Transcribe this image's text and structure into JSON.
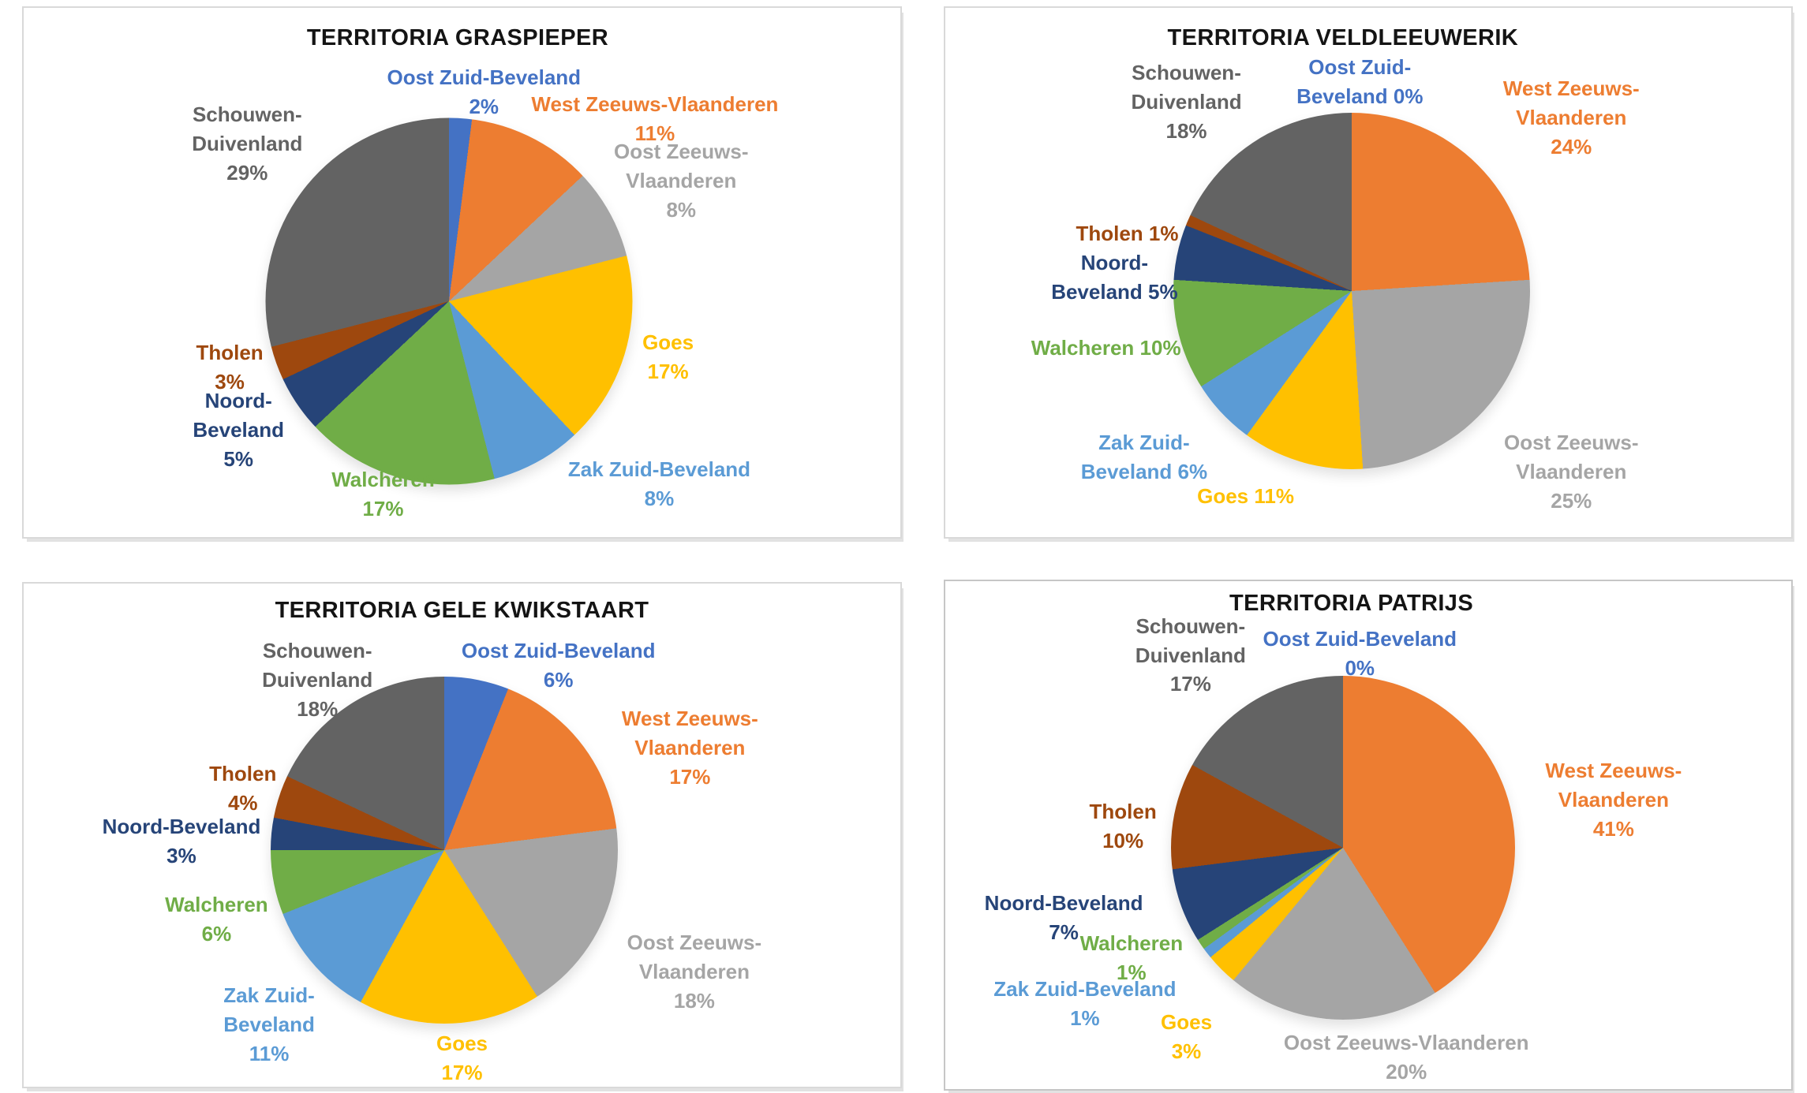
{
  "page": {
    "background_color": "#ffffff",
    "panel_border_color": "#d9d9d9"
  },
  "palette": {
    "Oost Zuid-Beveland": "#4472C4",
    "West Zeeuws-Vlaanderen": "#ED7D31",
    "Oost Zeeuws-Vlaanderen": "#A5A5A5",
    "Goes": "#FFC000",
    "Zak Zuid-Beveland": "#5B9BD5",
    "Walcheren": "#70AD47",
    "Noord-Beveland": "#264478",
    "Tholen": "#9E480E",
    "Schouwen-Duivenland": "#636363"
  },
  "chart_data": [
    {
      "type": "pie",
      "title": "TERRITORIA GRASPIEPER",
      "unit": "%",
      "start_angle_deg": 0,
      "direction": "clockwise",
      "categories": [
        "Oost Zuid-Beveland",
        "West Zeeuws-Vlaanderen",
        "Oost Zeeuws-Vlaanderen",
        "Goes",
        "Zak Zuid-Beveland",
        "Walcheren",
        "Noord-Beveland",
        "Tholen",
        "Schouwen-Duivenland"
      ],
      "values": [
        2,
        11,
        8,
        17,
        8,
        17,
        5,
        3,
        29
      ],
      "labels": [
        {
          "category": "Oost Zuid-Beveland",
          "lines": [
            "Oost Zuid-Beveland",
            "2%"
          ],
          "x": 52.5,
          "y": 10.5
        },
        {
          "category": "West Zeeuws-Vlaanderen",
          "lines": [
            "West Zeeuws-Vlaanderen",
            "11%"
          ],
          "x": 72,
          "y": 15.5
        },
        {
          "category": "Oost Zeeuws-Vlaanderen",
          "lines": [
            "Oost Zeeuws-",
            "Vlaanderen",
            "8%"
          ],
          "x": 75,
          "y": 24.5
        },
        {
          "category": "Goes",
          "lines": [
            "Goes",
            "17%"
          ],
          "x": 73.5,
          "y": 60.5
        },
        {
          "category": "Zak Zuid-Beveland",
          "lines": [
            "Zak Zuid-Beveland",
            "8%"
          ],
          "x": 72.5,
          "y": 84.5
        },
        {
          "category": "Walcheren",
          "lines": [
            "Walcheren",
            "17%"
          ],
          "x": 41,
          "y": 86.5
        },
        {
          "category": "Noord-Beveland",
          "lines": [
            "Noord-",
            "Beveland",
            "5%"
          ],
          "x": 24.5,
          "y": 71.5
        },
        {
          "category": "Tholen",
          "lines": [
            "Tholen",
            "3%"
          ],
          "x": 23.5,
          "y": 62.5
        },
        {
          "category": "Schouwen-Duivenland",
          "lines": [
            "Schouwen-",
            "Duivenland",
            "29%"
          ],
          "x": 25.5,
          "y": 17.5
        }
      ]
    },
    {
      "type": "pie",
      "title": "TERRITORIA VELDLEEUWERIK",
      "unit": "%",
      "start_angle_deg": 0,
      "direction": "clockwise",
      "categories": [
        "Oost Zuid-Beveland",
        "West Zeeuws-Vlaanderen",
        "Oost Zeeuws-Vlaanderen",
        "Goes",
        "Zak Zuid-Beveland",
        "Walcheren",
        "Noord-Beveland",
        "Tholen",
        "Schouwen-Duivenland"
      ],
      "values": [
        0,
        24,
        25,
        11,
        6,
        10,
        5,
        1,
        18
      ],
      "labels": [
        {
          "category": "Oost Zuid-Beveland",
          "lines": [
            "Oost Zuid-",
            "Beveland 0%"
          ],
          "x": 49,
          "y": 8.5
        },
        {
          "category": "West Zeeuws-Vlaanderen",
          "lines": [
            "West Zeeuws-",
            "Vlaanderen",
            "24%"
          ],
          "x": 74,
          "y": 12.5
        },
        {
          "category": "Oost Zeeuws-Vlaanderen",
          "lines": [
            "Oost Zeeuws-",
            "Vlaanderen",
            "25%"
          ],
          "x": 74,
          "y": 79.5
        },
        {
          "category": "Goes",
          "lines": [
            "Goes 11%"
          ],
          "x": 35.5,
          "y": 89.5
        },
        {
          "category": "Zak Zuid-Beveland",
          "lines": [
            "Zak Zuid-",
            "Beveland 6%"
          ],
          "x": 23.5,
          "y": 79.5
        },
        {
          "category": "Walcheren",
          "lines": [
            "Walcheren 10%"
          ],
          "x": 19,
          "y": 61.5
        },
        {
          "category": "Noord-Beveland",
          "lines": [
            "Noord-",
            "Beveland 5%"
          ],
          "x": 20,
          "y": 45.5
        },
        {
          "category": "Tholen",
          "lines": [
            "Tholen 1%"
          ],
          "x": 21.5,
          "y": 40
        },
        {
          "category": "Schouwen-Duivenland",
          "lines": [
            "Schouwen-",
            "Duivenland",
            "18%"
          ],
          "x": 28.5,
          "y": 9.5
        }
      ]
    },
    {
      "type": "pie",
      "title": "TERRITORIA GELE KWIKSTAART",
      "unit": "%",
      "start_angle_deg": 0,
      "direction": "clockwise",
      "categories": [
        "Oost Zuid-Beveland",
        "West Zeeuws-Vlaanderen",
        "Oost Zeeuws-Vlaanderen",
        "Goes",
        "Zak Zuid-Beveland",
        "Walcheren",
        "Noord-Beveland",
        "Tholen",
        "Schouwen-Duivenland"
      ],
      "values": [
        6,
        17,
        18,
        17,
        11,
        6,
        3,
        4,
        18
      ],
      "labels": [
        {
          "category": "Oost Zuid-Beveland",
          "lines": [
            "Oost Zuid-Beveland",
            "6%"
          ],
          "x": 61,
          "y": 10.5
        },
        {
          "category": "West Zeeuws-Vlaanderen",
          "lines": [
            "West Zeeuws-",
            "Vlaanderen",
            "17%"
          ],
          "x": 76,
          "y": 24
        },
        {
          "category": "Oost Zeeuws-Vlaanderen",
          "lines": [
            "Oost Zeeuws-",
            "Vlaanderen",
            "18%"
          ],
          "x": 76.5,
          "y": 68.5
        },
        {
          "category": "Goes",
          "lines": [
            "Goes",
            "17%"
          ],
          "x": 50,
          "y": 88.5
        },
        {
          "category": "Zak Zuid-Beveland",
          "lines": [
            "Zak Zuid-",
            "Beveland",
            "11%"
          ],
          "x": 28,
          "y": 79
        },
        {
          "category": "Walcheren",
          "lines": [
            "Walcheren",
            "6%"
          ],
          "x": 22,
          "y": 61
        },
        {
          "category": "Noord-Beveland",
          "lines": [
            "Noord-Beveland",
            "3%"
          ],
          "x": 18,
          "y": 45.5
        },
        {
          "category": "Tholen",
          "lines": [
            "Tholen",
            "4%"
          ],
          "x": 25,
          "y": 35
        },
        {
          "category": "Schouwen-Duivenland",
          "lines": [
            "Schouwen-",
            "Duivenland",
            "18%"
          ],
          "x": 33.5,
          "y": 10.5
        }
      ]
    },
    {
      "type": "pie",
      "title": "TERRITORIA PATRIJS",
      "unit": "%",
      "start_angle_deg": 0,
      "direction": "clockwise",
      "categories": [
        "Oost Zuid-Beveland",
        "West Zeeuws-Vlaanderen",
        "Oost Zeeuws-Vlaanderen",
        "Goes",
        "Zak Zuid-Beveland",
        "Walcheren",
        "Noord-Beveland",
        "Tholen",
        "Schouwen-Duivenland"
      ],
      "values": [
        0,
        41,
        20,
        3,
        1,
        1,
        7,
        10,
        17
      ],
      "labels": [
        {
          "category": "Oost Zuid-Beveland",
          "lines": [
            "Oost Zuid-Beveland",
            "0%"
          ],
          "x": 49,
          "y": 8.5
        },
        {
          "category": "West Zeeuws-Vlaanderen",
          "lines": [
            "West Zeeuws-",
            "Vlaanderen",
            "41%"
          ],
          "x": 79,
          "y": 34.5
        },
        {
          "category": "Oost Zeeuws-Vlaanderen",
          "lines": [
            "Oost Zeeuws-Vlaanderen",
            "20%"
          ],
          "x": 54.5,
          "y": 88
        },
        {
          "category": "Goes",
          "lines": [
            "Goes",
            "3%"
          ],
          "x": 28.5,
          "y": 84
        },
        {
          "category": "Zak Zuid-Beveland",
          "lines": [
            "Zak Zuid-Beveland",
            "1%"
          ],
          "x": 16.5,
          "y": 77.5
        },
        {
          "category": "Walcheren",
          "lines": [
            "Walcheren",
            "1%"
          ],
          "x": 22,
          "y": 68.5
        },
        {
          "category": "Noord-Beveland",
          "lines": [
            "Noord-Beveland",
            "7%"
          ],
          "x": 14,
          "y": 60.5
        },
        {
          "category": "Tholen",
          "lines": [
            "Tholen",
            "10%"
          ],
          "x": 21,
          "y": 42.5
        },
        {
          "category": "Schouwen-Duivenland",
          "lines": [
            "Schouwen-",
            "Duivenland",
            "17%"
          ],
          "x": 29,
          "y": 6
        }
      ]
    }
  ]
}
